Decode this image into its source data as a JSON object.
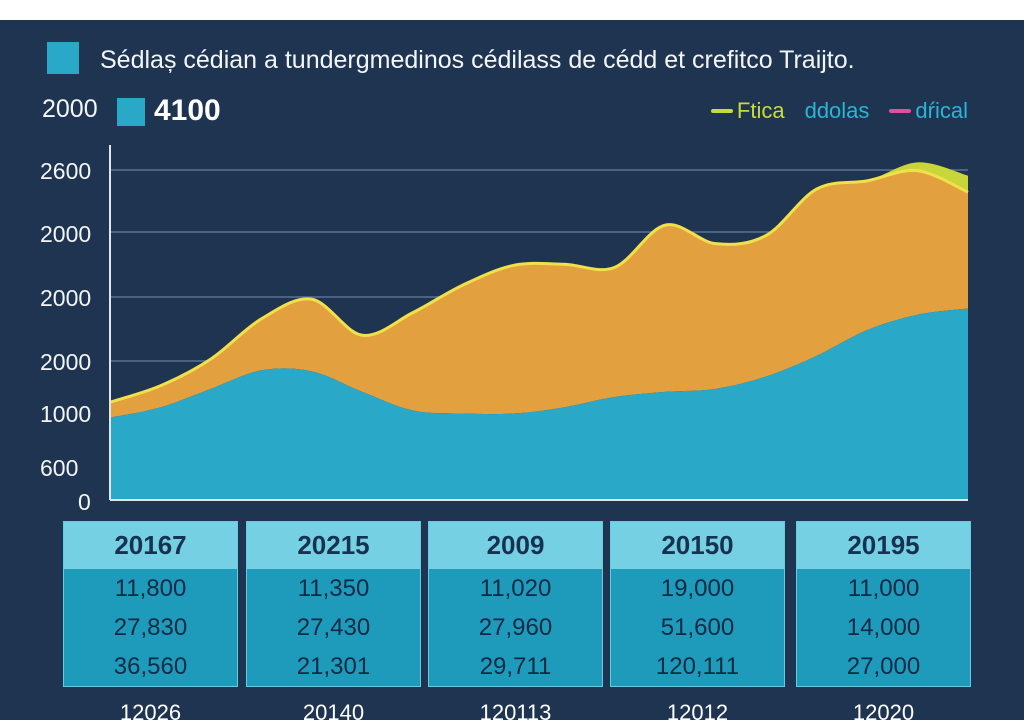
{
  "title": "Sédlaș cédian a tundergmedinos cédilass de cédd et crefitco Traijto.",
  "top_left_value": "2000",
  "badge": {
    "value": "4100"
  },
  "colors": {
    "background": "#1e3450",
    "area_bottom": "#29a8c8",
    "area_middle": "#e3a03f",
    "area_top": "#c9d63a",
    "outline": "#f0e04a",
    "legend_magenta": "#e0509c",
    "card_body": "#1e9bba",
    "card_head": "#74d0e2"
  },
  "legend": [
    {
      "label": "Ftica",
      "color": "#c8dc37",
      "text_color": "#c8dc37"
    },
    {
      "label": "ddolas",
      "color": "",
      "text_color": "#29b5d6"
    },
    {
      "label": "dŕical",
      "color": "#e0509c",
      "text_color": "#29b5d6"
    }
  ],
  "chart_data": {
    "type": "area",
    "stacked": true,
    "y_tick_labels": [
      "2600",
      "2000",
      "2000",
      "2000",
      "1000",
      "600",
      "0"
    ],
    "x": [
      0,
      1,
      2,
      3,
      4,
      5,
      6,
      7,
      8,
      9,
      10,
      11,
      12,
      13,
      14,
      15,
      16,
      17
    ],
    "series": [
      {
        "values": [
          800,
          900,
          1080,
          1260,
          1250,
          1050,
          870,
          840,
          840,
          900,
          1000,
          1050,
          1080,
          1200,
          1400,
          1650,
          1800,
          1860
        ]
      },
      {
        "values": [
          150,
          210,
          290,
          500,
          700,
          550,
          950,
          1250,
          1440,
          1390,
          1260,
          1620,
          1410,
          1370,
          1620,
          1450,
          1400,
          1130
        ]
      },
      {
        "values": [
          0,
          0,
          0,
          0,
          0,
          0,
          0,
          0,
          0,
          0,
          0,
          0,
          0,
          0,
          0,
          0,
          80,
          160
        ]
      }
    ],
    "ylim": [
      0,
      3400
    ],
    "grid": true,
    "legend_position": "top-right"
  },
  "cards": [
    {
      "year": "20167",
      "values": [
        "11,800",
        "27,830",
        "36,560"
      ],
      "footer": "12026"
    },
    {
      "year": "20215",
      "values": [
        "11,350",
        "27,430",
        "21,301"
      ],
      "footer": "20140"
    },
    {
      "year": "2009",
      "values": [
        "11,020",
        "27,960",
        "29,711"
      ],
      "footer": "120113"
    },
    {
      "year": "20150",
      "values": [
        "19,000",
        "51,600",
        "120,111"
      ],
      "footer": "12012"
    },
    {
      "year": "20195",
      "values": [
        "11,000",
        "14,000",
        "27,000"
      ],
      "footer": "12020"
    }
  ]
}
